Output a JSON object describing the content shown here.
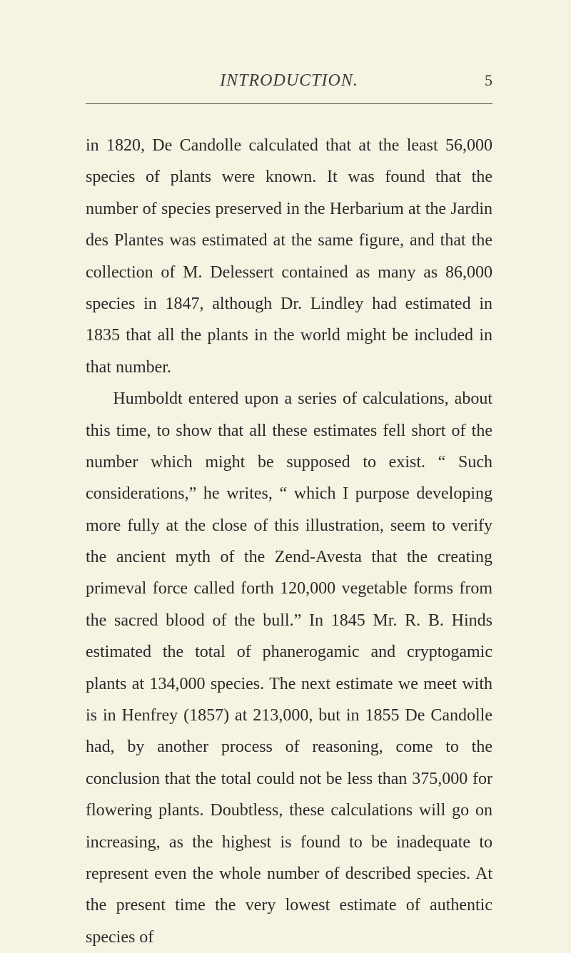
{
  "page": {
    "running_head": "INTRODUCTION.",
    "page_number": "5",
    "paragraphs": [
      {
        "indent": false,
        "text": "in 1820, De Candolle calculated that at the least 56,000 species of plants were known. It was found that the number of species preserved in the Herbarium at the Jardin des Plantes was estimated at the same figure, and that the collection of M. Delessert contained as many as 86,000 species in 1847, although Dr. Lindley had estimated in 1835 that all the plants in the world might be included in that number."
      },
      {
        "indent": true,
        "text": "Humboldt entered upon a series of calculations, about this time, to show that all these estimates fell short of the number which might be supposed to exist. “ Such considerations,” he writes, “ which I purpose developing more fully at the close of this illustration, seem to verify the ancient myth of the Zend-Avesta that the creating primeval force called forth 120,000 vegetable forms from the sacred blood of the bull.” In 1845 Mr. R. B. Hinds estimated the total of phanerogamic and cryptogamic plants at 134,000 species. The next estimate we meet with is in Henfrey (1857) at 213,000, but in 1855 De Candolle had, by another process of reasoning, come to the conclusion that the total could not be less than 375,000 for flowering plants. Doubtless, these calculations will go on increasing, as the highest is found to be inadequate to represent even the whole number of described species. At the present time the very lowest estimate of authentic species of"
      }
    ]
  },
  "colors": {
    "background": "#f7f3e3",
    "text": "#2a2a2a",
    "header_text": "#3a3a3a",
    "divider": "#4a4a4a"
  },
  "typography": {
    "body_fontsize": 24,
    "body_lineheight": 1.85,
    "header_fontsize": 24,
    "pagenum_fontsize": 22,
    "font_family": "Georgia, Times New Roman, serif"
  }
}
